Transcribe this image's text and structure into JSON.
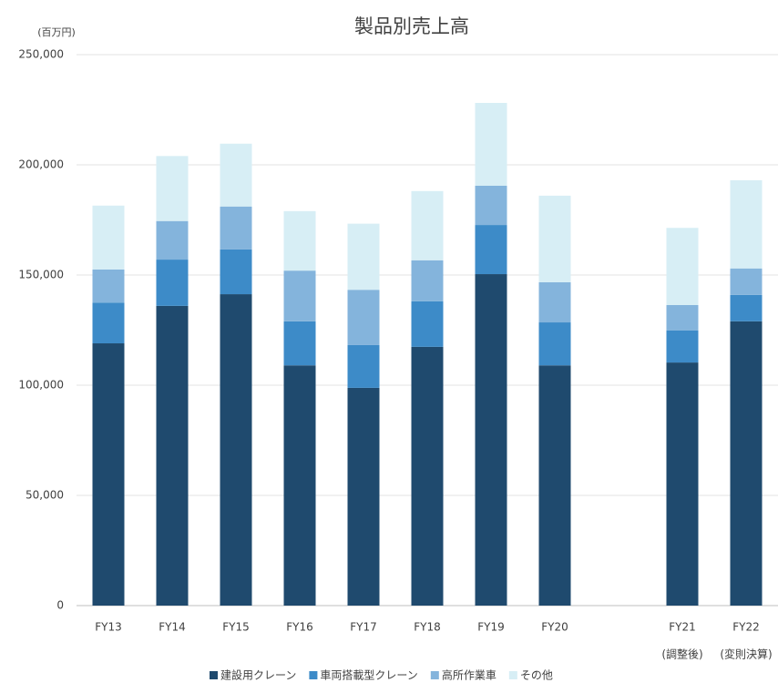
{
  "chart_data": {
    "type": "stacked_bar",
    "title": "製品別売上高",
    "y_unit": "(百万円)",
    "categories": [
      "FY13",
      "FY14",
      "FY15",
      "FY16",
      "FY17",
      "FY18",
      "FY19",
      "FY20",
      null,
      "FY21",
      "FY22"
    ],
    "category_sublabels": [
      null,
      null,
      null,
      null,
      null,
      null,
      null,
      null,
      null,
      "(調整後)",
      "(変則決算)"
    ],
    "series": [
      {
        "name": "建設用クレーン",
        "color": "#1f4a6e",
        "values": [
          119000,
          136000,
          141300,
          109000,
          98800,
          117400,
          150400,
          109000,
          null,
          110300,
          129000
        ]
      },
      {
        "name": "車両搭載型クレーン",
        "color": "#3d8bc8",
        "values": [
          18500,
          21000,
          20300,
          20000,
          19500,
          20700,
          22300,
          19500,
          null,
          14500,
          12000
        ]
      },
      {
        "name": "高所作業車",
        "color": "#84b4dc",
        "values": [
          15000,
          17500,
          19500,
          23000,
          25000,
          18600,
          17800,
          18200,
          null,
          11600,
          12000
        ]
      },
      {
        "name": "その他",
        "color": "#d7eef5",
        "values": [
          29000,
          29500,
          28500,
          27000,
          30000,
          31400,
          37600,
          39300,
          null,
          35000,
          40000
        ]
      }
    ],
    "ylim": [
      0,
      250000
    ],
    "yticks": [
      0,
      {
        "value": 50000,
        "label": "50,000"
      },
      {
        "value": 100000,
        "label": "100,000"
      },
      {
        "value": 150000,
        "label": "150,000"
      },
      {
        "value": 200000,
        "label": "200,000"
      },
      {
        "value": 250000,
        "label": "250,000"
      }
    ],
    "grid": true,
    "legend": "bottom"
  }
}
